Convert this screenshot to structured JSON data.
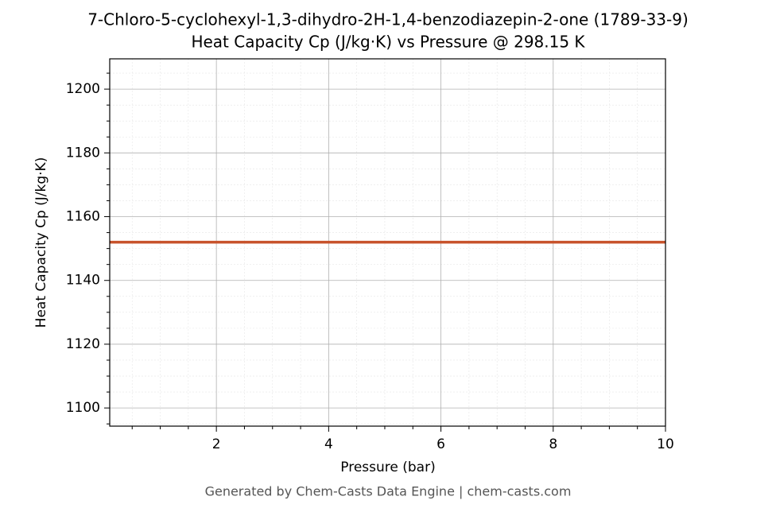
{
  "chart_data": {
    "type": "line",
    "title": "7-Chloro-5-cyclohexyl-1,3-dihydro-2H-1,4-benzodiazepin-2-one (1789-33-9)",
    "subtitle": "Heat Capacity Cp (J/kg·K) vs Pressure @ 298.15 K",
    "x_label": "Pressure (bar)",
    "y_label": "Heat Capacity Cp (J/kg·K)",
    "source": "Generated by Chem-Casts Data Engine | chem-casts.com",
    "x": [
      0.1,
      10
    ],
    "series": [
      {
        "name": "Cp",
        "color": "#c8532c",
        "values": [
          1152,
          1152
        ]
      }
    ],
    "xlim": [
      0.1,
      10
    ],
    "ylim": [
      1094.3,
      1209.5
    ],
    "xticks": [
      2,
      4,
      6,
      8,
      10
    ],
    "yticks": [
      1100,
      1120,
      1140,
      1160,
      1180,
      1200
    ],
    "xminorticks": [
      0.5,
      1,
      1.5,
      2.5,
      3,
      3.5,
      4.5,
      5,
      5.5,
      6.5,
      7,
      7.5,
      8.5,
      9,
      9.5
    ],
    "yminorticks": [
      1095,
      1105,
      1110,
      1115,
      1125,
      1130,
      1135,
      1145,
      1150,
      1155,
      1165,
      1170,
      1175,
      1185,
      1190,
      1195,
      1205
    ],
    "grid": true
  }
}
